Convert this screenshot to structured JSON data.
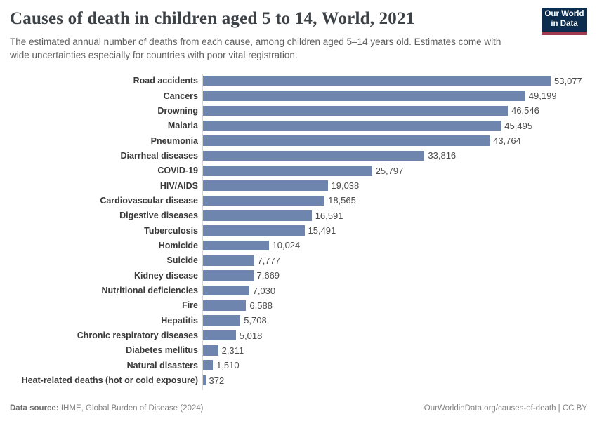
{
  "header": {
    "logo": {
      "line1": "Our World",
      "line2": "in Data",
      "bg_color": "#0c2d4e",
      "accent_color": "#a03b51"
    }
  },
  "chart_data": {
    "type": "bar",
    "orientation": "horizontal",
    "title": "Causes of death in children aged 5 to 14, World, 2021",
    "subtitle": "The estimated annual number of deaths from each cause, among children aged 5–14 years old. Estimates come with wide uncertainties especially for countries with poor vital registration.",
    "categories": [
      "Road accidents",
      "Cancers",
      "Drowning",
      "Malaria",
      "Pneumonia",
      "Diarrheal diseases",
      "COVID-19",
      "HIV/AIDS",
      "Cardiovascular disease",
      "Digestive diseases",
      "Tuberculosis",
      "Homicide",
      "Suicide",
      "Kidney disease",
      "Nutritional deficiencies",
      "Fire",
      "Hepatitis",
      "Chronic respiratory diseases",
      "Diabetes mellitus",
      "Natural disasters",
      "Heat-related deaths (hot or cold exposure)"
    ],
    "values": [
      53077,
      49199,
      46546,
      45495,
      43764,
      33816,
      25797,
      19038,
      18565,
      16591,
      15491,
      10024,
      7777,
      7669,
      7030,
      6588,
      5708,
      5018,
      2311,
      1510,
      372
    ],
    "value_labels": [
      "53,077",
      "49,199",
      "46,546",
      "45,495",
      "43,764",
      "33,816",
      "25,797",
      "19,038",
      "18,565",
      "16,591",
      "15,491",
      "10,024",
      "7,777",
      "7,669",
      "7,030",
      "6,588",
      "5,708",
      "5,018",
      "2,311",
      "1,510",
      "372"
    ],
    "xlabel": "",
    "ylabel": "",
    "xmax": 53077,
    "bar_color": "#6e85ae",
    "axis_line_color": "#d8d8d8",
    "grid": false,
    "legend": "none",
    "data_labels": "end-of-bar"
  },
  "footer": {
    "source_label": "Data source:",
    "source_text": " IHME, Global Burden of Disease (2024)",
    "attribution": "OurWorldinData.org/causes-of-death | CC BY"
  }
}
